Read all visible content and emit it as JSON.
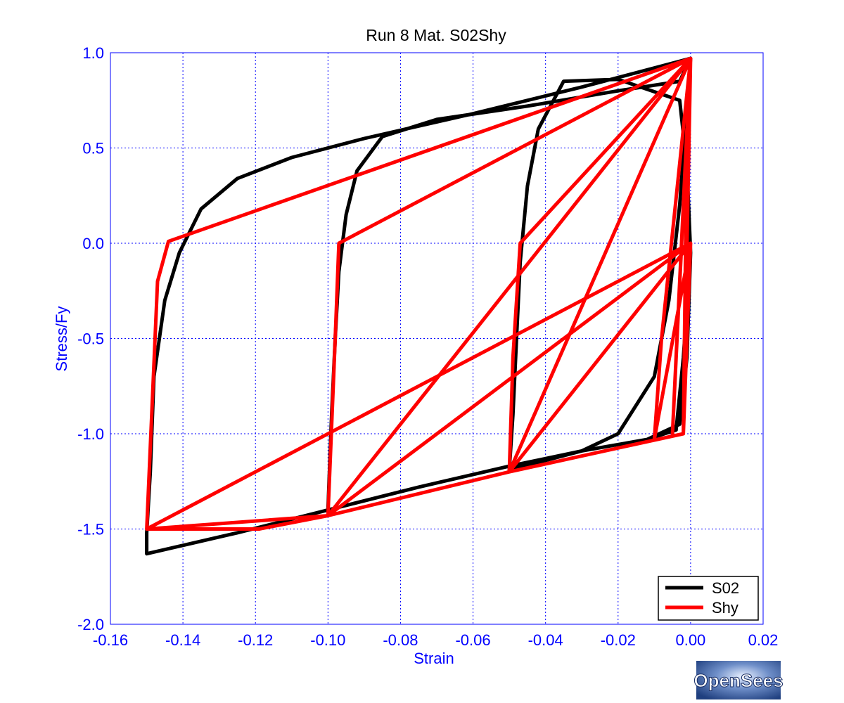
{
  "chart_data": {
    "type": "line",
    "title": "Run 8    Mat. S02Shy",
    "xlabel": "Strain",
    "ylabel": "Stress/Fy",
    "xlim": [
      -0.16,
      0.02
    ],
    "ylim": [
      -2.0,
      1.0
    ],
    "x_ticks": [
      "-0.16",
      "-0.14",
      "-0.12",
      "-0.10",
      "-0.08",
      "-0.06",
      "-0.04",
      "-0.02",
      "0.00",
      "0.02"
    ],
    "y_ticks": [
      "1.0",
      "0.5",
      "0.0",
      "-0.5",
      "-1.0",
      "-1.5",
      "-2.0"
    ],
    "grid": true,
    "legend_position": "bottom-right",
    "series": [
      {
        "name": "S02",
        "color": "#000000",
        "points": [
          [
            0.0,
            -0.05
          ],
          [
            -0.001,
            -0.6
          ],
          [
            -0.003,
            -0.95
          ],
          [
            -0.012,
            -1.03
          ],
          [
            -0.03,
            -1.09
          ],
          [
            -0.05,
            -1.17
          ],
          [
            -0.075,
            -1.28
          ],
          [
            -0.1,
            -1.4
          ],
          [
            -0.125,
            -1.52
          ],
          [
            -0.15,
            -1.63
          ],
          [
            -0.15,
            -1.52
          ],
          [
            -0.149,
            -1.2
          ],
          [
            -0.148,
            -0.7
          ],
          [
            -0.145,
            -0.3
          ],
          [
            -0.141,
            -0.05
          ],
          [
            -0.135,
            0.18
          ],
          [
            -0.125,
            0.34
          ],
          [
            -0.11,
            0.45
          ],
          [
            -0.09,
            0.55
          ],
          [
            -0.06,
            0.68
          ],
          [
            -0.03,
            0.82
          ],
          [
            0.0,
            0.97
          ],
          [
            -0.003,
            0.85
          ],
          [
            -0.02,
            0.8
          ],
          [
            -0.045,
            0.72
          ],
          [
            -0.07,
            0.65
          ],
          [
            -0.085,
            0.56
          ],
          [
            -0.092,
            0.38
          ],
          [
            -0.095,
            0.15
          ],
          [
            -0.097,
            -0.15
          ],
          [
            -0.098,
            -0.5
          ],
          [
            -0.099,
            -0.9
          ],
          [
            -0.1,
            -1.4
          ],
          [
            -0.075,
            -1.28
          ],
          [
            -0.05,
            -1.17
          ],
          [
            -0.03,
            -1.09
          ],
          [
            -0.012,
            -1.03
          ],
          [
            -0.004,
            -0.98
          ],
          [
            -0.002,
            -0.6
          ],
          [
            0.0,
            -0.05
          ],
          [
            -0.001,
            0.4
          ],
          [
            -0.003,
            0.75
          ],
          [
            -0.02,
            0.86
          ],
          [
            -0.035,
            0.85
          ],
          [
            -0.042,
            0.6
          ],
          [
            -0.045,
            0.3
          ],
          [
            -0.047,
            -0.1
          ],
          [
            -0.048,
            -0.5
          ],
          [
            -0.049,
            -0.9
          ],
          [
            -0.05,
            -1.19
          ],
          [
            -0.03,
            -1.09
          ],
          [
            -0.02,
            -1.0
          ],
          [
            -0.01,
            -0.7
          ],
          [
            -0.006,
            -0.3
          ],
          [
            -0.003,
            0.2
          ],
          [
            0.0,
            0.97
          ]
        ]
      },
      {
        "name": "Shy",
        "color": "#ff0000",
        "points": [
          [
            0.0,
            0.0
          ],
          [
            -0.15,
            -1.5
          ],
          [
            -0.119,
            -1.5
          ],
          [
            -0.1,
            -1.43
          ],
          [
            -0.05,
            -1.2
          ],
          [
            -0.002,
            -1.0
          ],
          [
            0.0,
            0.97
          ],
          [
            -0.144,
            0.01
          ],
          [
            -0.147,
            -0.2
          ],
          [
            -0.15,
            -1.5
          ],
          [
            -0.1,
            -1.43
          ],
          [
            -0.098,
            -0.5
          ],
          [
            -0.097,
            0.0
          ],
          [
            0.0,
            0.97
          ],
          [
            -0.05,
            -1.2
          ],
          [
            -0.049,
            -0.6
          ],
          [
            -0.047,
            0.0
          ],
          [
            0.0,
            0.97
          ],
          [
            -0.1,
            -1.43
          ],
          [
            0.0,
            0.0
          ],
          [
            -0.05,
            -1.2
          ],
          [
            0.0,
            0.0
          ],
          [
            -0.01,
            -1.03
          ],
          [
            -0.008,
            -0.5
          ],
          [
            -0.0,
            0.97
          ],
          [
            -0.005,
            -1.0
          ],
          [
            -0.001,
            0.6
          ],
          [
            -0.002,
            -1.0
          ],
          [
            0.0,
            0.0
          ]
        ]
      }
    ]
  },
  "logo": {
    "text": "OpenSees"
  }
}
